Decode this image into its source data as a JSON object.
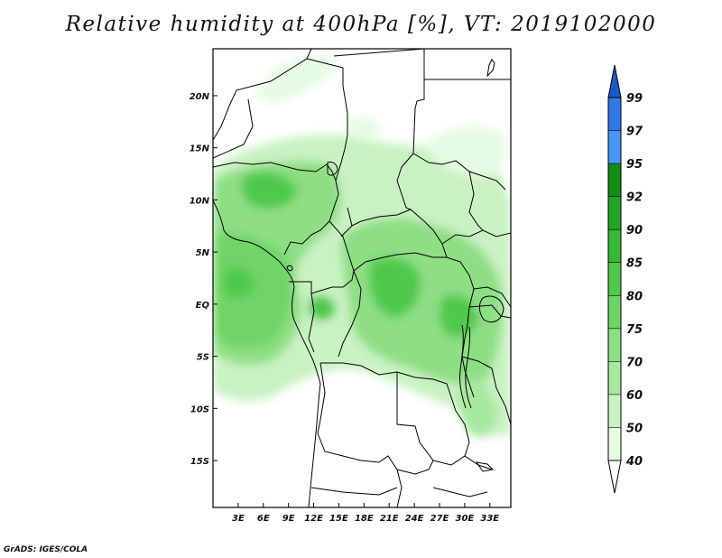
{
  "title": "Relative humidity at 400hPa [%], VT: 2019102000",
  "credit": "GrADS: IGES/COLA",
  "map": {
    "region": "Central Africa",
    "lon_range": [
      0,
      35.5
    ],
    "lat_range": [
      -19.5,
      24.5
    ],
    "lon_ticks": [
      "3E",
      "6E",
      "9E",
      "12E",
      "15E",
      "18E",
      "21E",
      "24E",
      "27E",
      "30E",
      "33E"
    ],
    "lat_ticks": [
      "20N",
      "15N",
      "10N",
      "5N",
      "EQ",
      "5S",
      "10S",
      "15S"
    ],
    "field": "relative humidity at 400hPa, green shading where above 40%, concentrated between ~10S and ~15N"
  },
  "colorbar": {
    "levels": [
      "40",
      "50",
      "60",
      "70",
      "75",
      "80",
      "85",
      "90",
      "92",
      "95",
      "97",
      "99"
    ],
    "colors": [
      "#ffffff",
      "#e6fbe3",
      "#c9f2c2",
      "#a8e8a0",
      "#8ede84",
      "#6fd467",
      "#4fc94b",
      "#35b936",
      "#22a524",
      "#128d14",
      "#4796f5",
      "#2f78e6",
      "#1b58c9"
    ]
  }
}
